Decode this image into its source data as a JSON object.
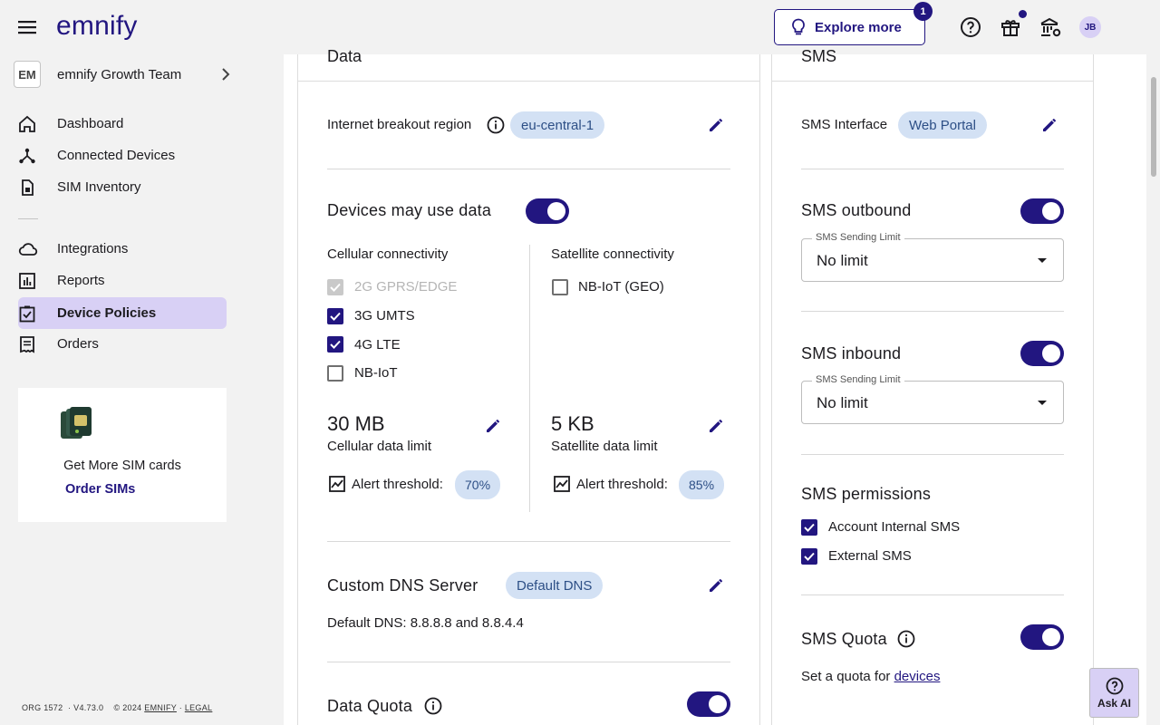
{
  "header": {
    "logo": "emnify",
    "explore_label": "Explore more",
    "explore_badge": "1",
    "avatar_initials": "JB"
  },
  "sidebar": {
    "org_initials": "EM",
    "org_name": "emnify Growth Team",
    "items": [
      {
        "label": "Dashboard",
        "icon": "home-icon"
      },
      {
        "label": "Connected Devices",
        "icon": "devices-icon"
      },
      {
        "label": "SIM Inventory",
        "icon": "sim-icon"
      },
      {
        "label": "Integrations",
        "icon": "cloud-icon"
      },
      {
        "label": "Reports",
        "icon": "reports-icon"
      },
      {
        "label": "Device Policies",
        "icon": "policy-icon",
        "active": true
      },
      {
        "label": "Orders",
        "icon": "orders-icon"
      }
    ],
    "promo_text": "Get More SIM cards",
    "promo_link": "Order SIMs",
    "footer_org": "ORG 1572",
    "footer_version": "V4.73.0",
    "footer_copyright": "© 2024",
    "footer_emnify": "EMNIFY",
    "footer_legal": "LEGAL"
  },
  "data_panel": {
    "title": "Data",
    "breakout_label": "Internet breakout region",
    "breakout_value": "eu-central-1",
    "devices_use_data": "Devices may use data",
    "devices_use_data_on": true,
    "cellular_title": "Cellular connectivity",
    "cellular_options": [
      {
        "label": "2G GPRS/EDGE",
        "checked": true,
        "disabled": true
      },
      {
        "label": "3G UMTS",
        "checked": true,
        "disabled": false
      },
      {
        "label": "4G LTE",
        "checked": true,
        "disabled": false
      },
      {
        "label": "NB-IoT",
        "checked": false,
        "disabled": false
      }
    ],
    "satellite_title": "Satellite connectivity",
    "satellite_options": [
      {
        "label": "NB-IoT (GEO)",
        "checked": false
      }
    ],
    "cellular_limit_value": "30 MB",
    "cellular_limit_label": "Cellular data limit",
    "cellular_alert_label": "Alert threshold:",
    "cellular_alert_value": "70%",
    "satellite_limit_value": "5 KB",
    "satellite_limit_label": "Satellite data limit",
    "satellite_alert_label": "Alert threshold:",
    "satellite_alert_value": "85%",
    "dns_title": "Custom DNS Server",
    "dns_chip": "Default DNS",
    "dns_text": "Default DNS: 8.8.8.8 and 8.8.4.4",
    "quota_title": "Data Quota",
    "quota_on": true
  },
  "sms_panel": {
    "title": "SMS",
    "interface_label": "SMS Interface",
    "interface_value": "Web Portal",
    "outbound_title": "SMS outbound",
    "outbound_on": true,
    "outbound_limit_label": "SMS Sending Limit",
    "outbound_limit_value": "No limit",
    "inbound_title": "SMS inbound",
    "inbound_on": true,
    "inbound_limit_label": "SMS Sending Limit",
    "inbound_limit_value": "No limit",
    "permissions_title": "SMS permissions",
    "permissions": [
      {
        "label": "Account Internal SMS",
        "checked": true
      },
      {
        "label": "External SMS",
        "checked": true
      }
    ],
    "quota_title": "SMS Quota",
    "quota_on": true,
    "quota_text": "Set a quota for",
    "quota_link": "devices"
  },
  "ask_ai_label": "Ask AI",
  "colors": {
    "accent": "#221680",
    "active_nav": "#d8d0f5",
    "chip_bg": "#d3e1f4",
    "chip_text": "#2d4f86"
  }
}
